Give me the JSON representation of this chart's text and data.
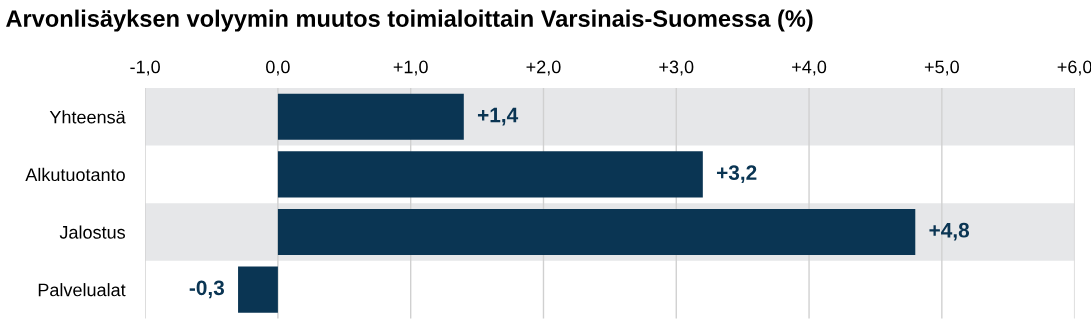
{
  "chart_data": {
    "type": "bar",
    "orientation": "horizontal",
    "title": "Arvonlisäyksen volyymin muutos toimialoittain Varsinais-Suomessa (%)",
    "categories": [
      "Yhteensä",
      "Alkutuotanto",
      "Jalostus",
      "Palvelualat"
    ],
    "values": [
      1.4,
      3.2,
      4.8,
      -0.3
    ],
    "color": "#0a3553",
    "value_labels": [
      "+1,4",
      "+3,2",
      "+4,8",
      "-0,3"
    ],
    "xlim": [
      -1,
      6
    ],
    "xticks": [
      {
        "value": -1,
        "label": "-1,0"
      },
      {
        "value": 0,
        "label": "0,0"
      },
      {
        "value": 1,
        "label": "+1,0"
      },
      {
        "value": 2,
        "label": "+2,0"
      },
      {
        "value": 3,
        "label": "+3,0"
      },
      {
        "value": 4,
        "label": "+4,0"
      },
      {
        "value": 5,
        "label": "+5,0"
      },
      {
        "value": 6,
        "label": "+6,0"
      }
    ],
    "bands": [
      {
        "axis": "y",
        "from": "Yhteensä",
        "to": "Yhteensä",
        "color": "#e6e7e9"
      },
      {
        "axis": "y",
        "from": "Jalostus",
        "to": "Jalostus",
        "color": "#e6e7e9"
      }
    ],
    "grid": "x",
    "legend": false
  }
}
